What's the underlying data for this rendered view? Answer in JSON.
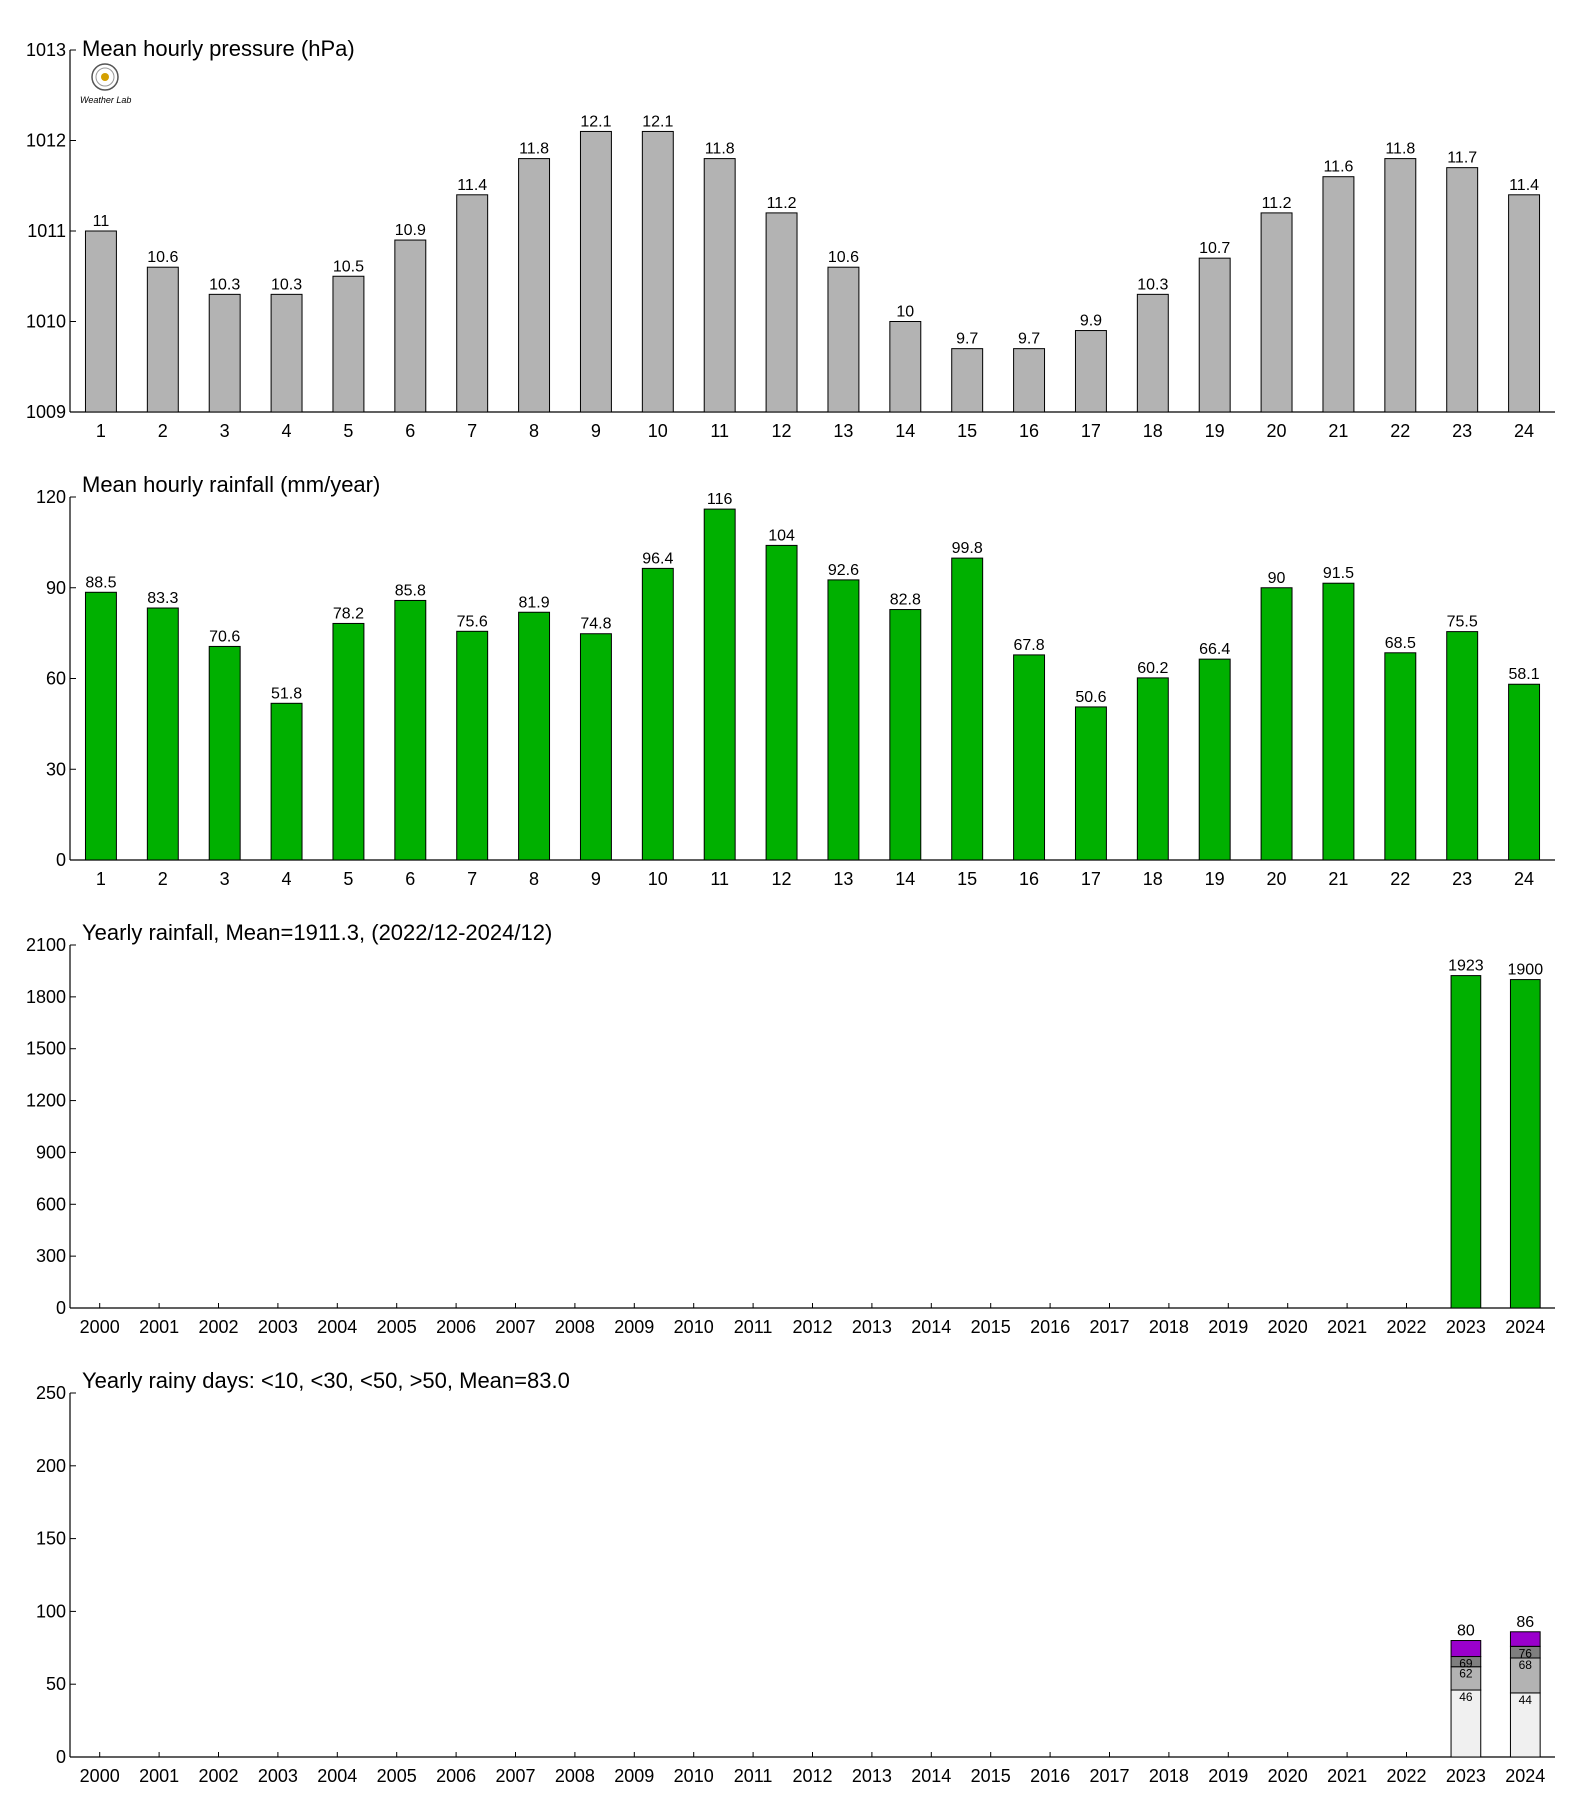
{
  "colors": {
    "pressure": "#b3b3b3",
    "rainfall": "#00b000",
    "days_lt10": "#f0f0f0",
    "days_lt30": "#b3b3b3",
    "days_lt50": "#7f7f7f",
    "days_gt50": "#9a00cc",
    "outline": "#000000"
  },
  "logo": {
    "icon": "seal-logo-icon",
    "text": "Weather Lab"
  },
  "chart_data": [
    {
      "type": "bar",
      "title": "Mean hourly pressure (hPa)",
      "categories": [
        "1",
        "2",
        "3",
        "4",
        "5",
        "6",
        "7",
        "8",
        "9",
        "10",
        "11",
        "12",
        "13",
        "14",
        "15",
        "16",
        "17",
        "18",
        "19",
        "20",
        "21",
        "22",
        "23",
        "24"
      ],
      "values": [
        1011.0,
        1010.6,
        1010.3,
        1010.3,
        1010.5,
        1010.9,
        1011.4,
        1011.8,
        1012.1,
        1012.1,
        1011.8,
        1011.2,
        1010.6,
        1010.0,
        1009.7,
        1009.7,
        1009.9,
        1010.3,
        1010.7,
        1011.2,
        1011.6,
        1011.8,
        1011.7,
        1011.4
      ],
      "value_labels": [
        "11",
        "10.6",
        "10.3",
        "10.3",
        "10.5",
        "10.9",
        "11.4",
        "11.8",
        "12.1",
        "12.1",
        "11.8",
        "11.2",
        "10.6",
        "10",
        "9.7",
        "9.7",
        "9.9",
        "10.3",
        "10.7",
        "11.2",
        "11.6",
        "11.8",
        "11.7",
        "11.4"
      ],
      "ylim": [
        1009,
        1013
      ],
      "yticks": [
        "1009",
        "1010",
        "1011",
        "1012",
        "1013"
      ],
      "grid": false
    },
    {
      "type": "bar",
      "title": "Mean hourly rainfall (mm/year)",
      "categories": [
        "1",
        "2",
        "3",
        "4",
        "5",
        "6",
        "7",
        "8",
        "9",
        "10",
        "11",
        "12",
        "13",
        "14",
        "15",
        "16",
        "17",
        "18",
        "19",
        "20",
        "21",
        "22",
        "23",
        "24"
      ],
      "values": [
        88.5,
        83.3,
        70.6,
        51.8,
        78.2,
        85.8,
        75.6,
        81.9,
        74.8,
        96.4,
        116,
        104,
        92.6,
        82.8,
        99.8,
        67.8,
        50.6,
        60.2,
        66.4,
        90,
        91.5,
        68.5,
        75.5,
        58.1
      ],
      "value_labels": [
        "88.5",
        "83.3",
        "70.6",
        "51.8",
        "78.2",
        "85.8",
        "75.6",
        "81.9",
        "74.8",
        "96.4",
        "116",
        "104",
        "92.6",
        "82.8",
        "99.8",
        "67.8",
        "50.6",
        "60.2",
        "66.4",
        "90",
        "91.5",
        "68.5",
        "75.5",
        "58.1"
      ],
      "ylim": [
        0,
        120
      ],
      "yticks": [
        "0",
        "30",
        "60",
        "90",
        "120"
      ],
      "grid": false
    },
    {
      "type": "bar",
      "title": "Yearly rainfall, Mean=1911.3, (2022/12-2024/12)",
      "categories": [
        "2000",
        "2001",
        "2002",
        "2003",
        "2004",
        "2005",
        "2006",
        "2007",
        "2008",
        "2009",
        "2010",
        "2011",
        "2012",
        "2013",
        "2014",
        "2015",
        "2016",
        "2017",
        "2018",
        "2019",
        "2020",
        "2021",
        "2022",
        "2023",
        "2024"
      ],
      "values": [
        null,
        null,
        null,
        null,
        null,
        null,
        null,
        null,
        null,
        null,
        null,
        null,
        null,
        null,
        null,
        null,
        null,
        null,
        null,
        null,
        null,
        null,
        null,
        1923,
        1900
      ],
      "value_labels": [
        "",
        "",
        "",
        "",
        "",
        "",
        "",
        "",
        "",
        "",
        "",
        "",
        "",
        "",
        "",
        "",
        "",
        "",
        "",
        "",
        "",
        "",
        "",
        "1923",
        "1900"
      ],
      "ylim": [
        0,
        2100
      ],
      "yticks": [
        "0",
        "300",
        "600",
        "900",
        "1200",
        "1500",
        "1800",
        "2100"
      ],
      "grid": false
    },
    {
      "type": "bar",
      "title": "Yearly rainy days: <10, <30, <50, >50, Mean=83.0",
      "categories": [
        "2000",
        "2001",
        "2002",
        "2003",
        "2004",
        "2005",
        "2006",
        "2007",
        "2008",
        "2009",
        "2010",
        "2011",
        "2012",
        "2013",
        "2014",
        "2015",
        "2016",
        "2017",
        "2018",
        "2019",
        "2020",
        "2021",
        "2022",
        "2023",
        "2024"
      ],
      "stacked": true,
      "stacks": [
        {
          "category": "2023",
          "cumulative": [
            46,
            62,
            69,
            80
          ],
          "labels": [
            "46",
            "62",
            "69"
          ],
          "total_label": "80"
        },
        {
          "category": "2024",
          "cumulative": [
            44,
            68,
            76,
            86
          ],
          "labels": [
            "44",
            "68",
            "76"
          ],
          "total_label": "86"
        }
      ],
      "ylim": [
        0,
        250
      ],
      "yticks": [
        "0",
        "50",
        "100",
        "150",
        "200",
        "250"
      ],
      "grid": false
    }
  ]
}
